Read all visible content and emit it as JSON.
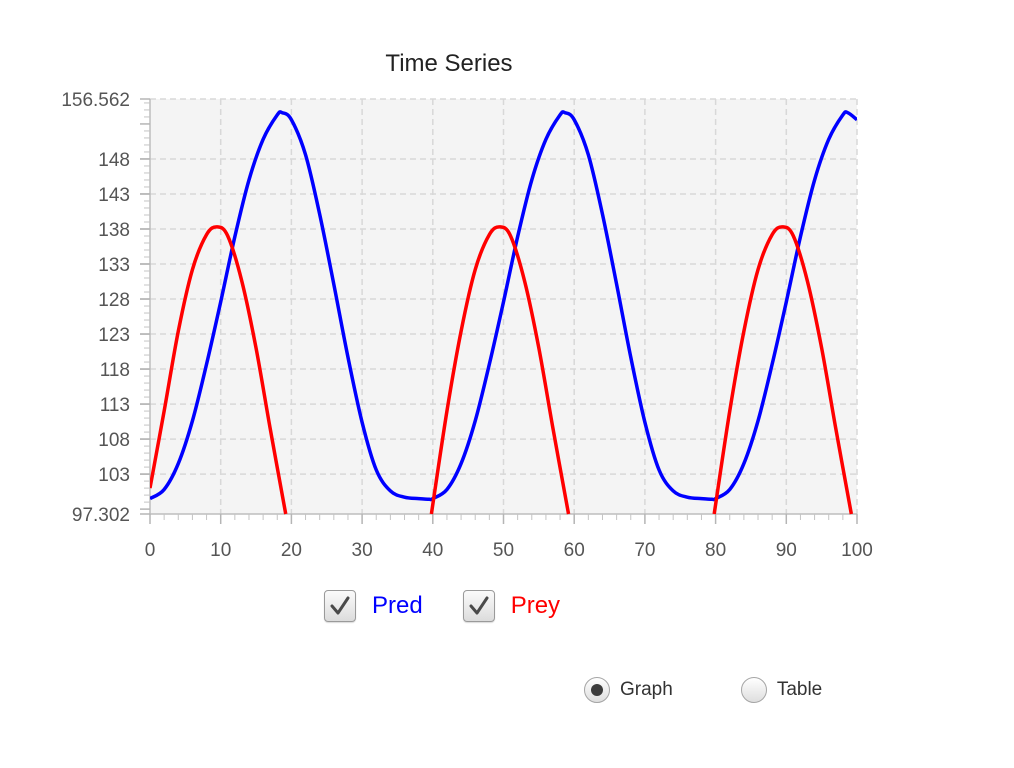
{
  "chart_data": {
    "type": "line",
    "title": "Time Series",
    "xlabel": "",
    "ylabel": "",
    "xlim": [
      0,
      100
    ],
    "ylim": [
      97.302,
      156.562
    ],
    "grid": true,
    "x_ticks": [
      0,
      10,
      20,
      30,
      40,
      50,
      60,
      70,
      80,
      90,
      100
    ],
    "x_tick_labels": [
      "0",
      "10",
      "20",
      "30",
      "40",
      "50",
      "60",
      "70",
      "80",
      "90",
      "100"
    ],
    "y_ticks": [
      97.302,
      103,
      108,
      113,
      118,
      123,
      128,
      133,
      138,
      143,
      148,
      156.562
    ],
    "y_tick_labels": [
      "97.302",
      "103",
      "108",
      "113",
      "118",
      "123",
      "128",
      "133",
      "138",
      "143",
      "148",
      "156.562"
    ],
    "series": [
      {
        "name": "Pred",
        "color": "#0000ff",
        "x": [
          0,
          2,
          4,
          6,
          8,
          10,
          12,
          14,
          16,
          18,
          18.7,
          20,
          22,
          24,
          26,
          28,
          30,
          32,
          34,
          36,
          38,
          39.5,
          40,
          42,
          44,
          46,
          48,
          50,
          52,
          54,
          56,
          58,
          58.7,
          60,
          62,
          64,
          66,
          68,
          70,
          72,
          74,
          76,
          78,
          79.5,
          80,
          82,
          84,
          86,
          88,
          90,
          92,
          94,
          96,
          98,
          98.7,
          100
        ],
        "y": [
          99.5,
          100.8,
          104.5,
          110.6,
          118.7,
          127.6,
          136.9,
          145.0,
          150.8,
          154.3,
          154.6,
          153.6,
          148.6,
          140.1,
          130.1,
          119.7,
          110.4,
          103.6,
          100.6,
          99.7,
          99.5,
          99.4,
          99.5,
          100.8,
          104.5,
          110.6,
          118.7,
          127.6,
          136.9,
          145.0,
          150.8,
          154.3,
          154.6,
          153.6,
          148.6,
          140.1,
          130.1,
          119.7,
          110.4,
          103.6,
          100.6,
          99.7,
          99.5,
          99.4,
          99.5,
          100.8,
          104.5,
          110.6,
          118.7,
          127.6,
          136.9,
          145.0,
          150.8,
          154.3,
          154.6,
          153.6
        ]
      },
      {
        "name": "Prey",
        "color": "#ff0000",
        "segments": [
          {
            "x": [
              0,
              2,
              4,
              6,
              8,
              9.5,
              11,
              13,
              15,
              17,
              19.2
            ],
            "y": [
              101.0,
              112.0,
              123.4,
              132.2,
              137.2,
              138.3,
              137.0,
              130.5,
              121.0,
              109.5,
              97.302
            ]
          },
          {
            "x": [
              39.8,
              42,
              44,
              46,
              48,
              49.5,
              51,
              53,
              55,
              57,
              59.2
            ],
            "y": [
              97.302,
              112.0,
              123.4,
              132.2,
              137.2,
              138.3,
              137.0,
              130.5,
              121.0,
              109.5,
              97.302
            ]
          },
          {
            "x": [
              79.8,
              82,
              84,
              86,
              88,
              89.5,
              91,
              93,
              95,
              97,
              99.2
            ],
            "y": [
              97.302,
              112.0,
              123.4,
              132.2,
              137.2,
              138.3,
              137.0,
              130.5,
              121.0,
              109.5,
              97.302
            ]
          }
        ]
      }
    ]
  },
  "legend": {
    "pred_label": "Pred",
    "prey_label": "Prey",
    "pred_color": "#0000ff",
    "prey_color": "#ff0000",
    "pred_checked": true,
    "prey_checked": true
  },
  "view_mode": {
    "graph_label": "Graph",
    "table_label": "Table",
    "selected": "Graph"
  }
}
